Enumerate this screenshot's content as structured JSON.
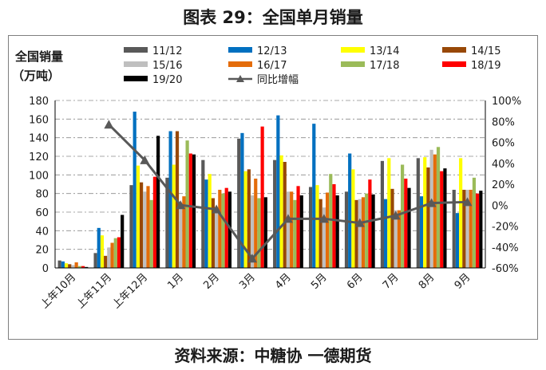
{
  "title": "图表 29：全国单月销量",
  "source": "资料来源：中糖协 一德期货",
  "chart_data": {
    "type": "bar",
    "ylabel_line1": "全国销量",
    "ylabel_line2": "（万吨）",
    "categories": [
      "上年10月",
      "上年11月",
      "上年12月",
      "1月",
      "2月",
      "3月",
      "4月",
      "5月",
      "6月",
      "7月",
      "8月",
      "9月"
    ],
    "ylim": [
      0,
      180
    ],
    "y_ticks": [
      "0",
      "20",
      "40",
      "60",
      "80",
      "100",
      "120",
      "140",
      "160",
      "180"
    ],
    "y2lim": [
      -60,
      100
    ],
    "y2_ticks": [
      "-60%",
      "-40%",
      "-20%",
      "0%",
      "20%",
      "40%",
      "60%",
      "80%",
      "100%"
    ],
    "grid": true,
    "legend_position": "top",
    "series": [
      {
        "name": "11/12",
        "color": "#595959",
        "values": [
          8,
          16,
          89,
          97,
          116,
          139,
          116,
          87,
          82,
          115,
          118,
          84
        ]
      },
      {
        "name": "12/13",
        "color": "#0070c0",
        "values": [
          7,
          43,
          168,
          147,
          95,
          145,
          164,
          155,
          123,
          74,
          77,
          59
        ]
      },
      {
        "name": "13/14",
        "color": "#ffff00",
        "values": [
          5,
          35,
          110,
          111,
          101,
          104,
          121,
          89,
          106,
          118,
          119,
          118
        ]
      },
      {
        "name": "14/15",
        "color": "#984807",
        "values": [
          4,
          13,
          92,
          147,
          75,
          106,
          114,
          74,
          73,
          85,
          108,
          84
        ]
      },
      {
        "name": "15/16",
        "color": "#bfbfbf",
        "values": [
          3,
          22,
          82,
          69,
          65,
          78,
          82,
          65,
          74,
          62,
          127,
          84
        ]
      },
      {
        "name": "16/17",
        "color": "#e46c0a",
        "values": [
          6,
          27,
          88,
          77,
          84,
          96,
          82,
          81,
          76,
          62,
          122,
          84
        ]
      },
      {
        "name": "17/18",
        "color": "#9bbb59",
        "values": [
          2,
          32,
          73,
          137,
          80,
          75,
          73,
          101,
          80,
          111,
          130,
          97
        ]
      },
      {
        "name": "18/19",
        "color": "#ff0000",
        "values": [
          2,
          33,
          98,
          123,
          86,
          152,
          88,
          90,
          95,
          96,
          104,
          80
        ]
      },
      {
        "name": "19/20",
        "color": "#000000",
        "values": [
          1,
          57,
          142,
          122,
          82,
          76,
          78,
          78,
          79,
          86,
          107,
          83
        ]
      }
    ],
    "line_series": {
      "name": "同比增幅",
      "color": "#595959",
      "values": [
        null,
        77,
        43,
        0,
        -4,
        -51,
        -13,
        -13,
        -17,
        -10,
        2,
        3
      ]
    }
  }
}
